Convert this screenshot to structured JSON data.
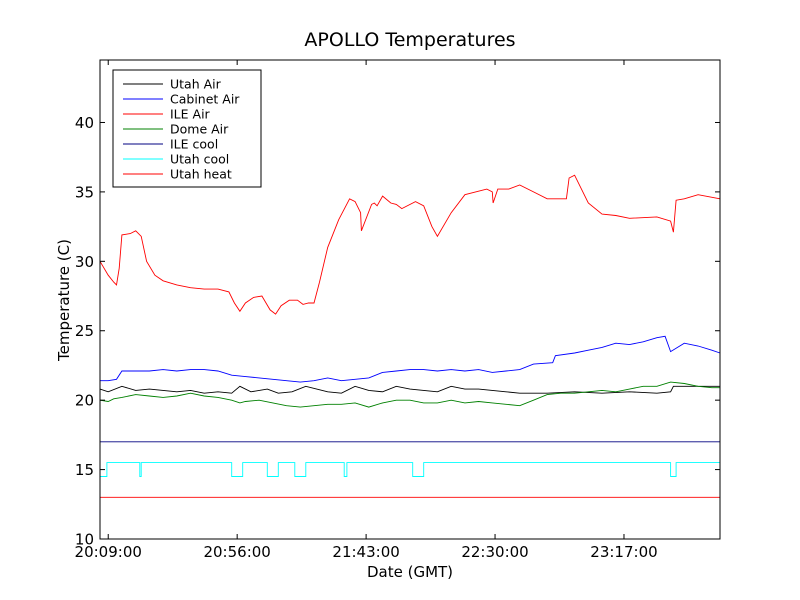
{
  "chart_data": {
    "type": "line",
    "title": "APOLLO Temperatures",
    "xlabel": "Date (GMT)",
    "ylabel": "Temperature (C)",
    "x_unit": "minutes since 20:09:00",
    "xlim": [
      -3,
      223
    ],
    "ylim": [
      10,
      44.5
    ],
    "yticks": [
      10,
      15,
      20,
      25,
      30,
      35,
      40
    ],
    "xticks": [
      {
        "value": 0,
        "label": "20:09:00"
      },
      {
        "value": 47,
        "label": "20:56:00"
      },
      {
        "value": 94,
        "label": "21:43:00"
      },
      {
        "value": 141,
        "label": "22:30:00"
      },
      {
        "value": 188,
        "label": "23:17:00"
      }
    ],
    "legend_position": "top-left",
    "series": [
      {
        "name": "Utah Air",
        "color": "#000000",
        "x": [
          -3,
          0,
          5,
          10,
          15,
          20,
          25,
          30,
          35,
          40,
          45,
          48,
          52,
          58,
          62,
          67,
          72,
          80,
          85,
          90,
          95,
          100,
          105,
          110,
          115,
          120,
          125,
          130,
          135,
          140,
          145,
          150,
          160,
          170,
          180,
          190,
          200,
          205,
          206,
          215,
          223
        ],
        "y": [
          20.8,
          20.6,
          21.0,
          20.7,
          20.8,
          20.7,
          20.6,
          20.7,
          20.5,
          20.6,
          20.5,
          21.0,
          20.6,
          20.8,
          20.5,
          20.6,
          21.0,
          20.6,
          20.5,
          21.0,
          20.7,
          20.6,
          21.0,
          20.8,
          20.7,
          20.6,
          21.0,
          20.8,
          20.8,
          20.7,
          20.6,
          20.5,
          20.5,
          20.6,
          20.5,
          20.6,
          20.5,
          20.6,
          21.0,
          21.0,
          21.0
        ]
      },
      {
        "name": "Cabinet Air",
        "color": "#0000ff",
        "x": [
          -3,
          0,
          3,
          5,
          10,
          15,
          20,
          25,
          30,
          35,
          40,
          45,
          50,
          55,
          60,
          65,
          70,
          75,
          80,
          85,
          90,
          95,
          100,
          105,
          110,
          115,
          120,
          125,
          130,
          135,
          140,
          145,
          150,
          155,
          162,
          163,
          170,
          175,
          180,
          185,
          190,
          195,
          200,
          203,
          205,
          210,
          215,
          220,
          223
        ],
        "y": [
          21.4,
          21.4,
          21.5,
          22.1,
          22.1,
          22.1,
          22.2,
          22.1,
          22.2,
          22.2,
          22.1,
          21.8,
          21.7,
          21.6,
          21.5,
          21.4,
          21.3,
          21.4,
          21.6,
          21.4,
          21.5,
          21.6,
          22.0,
          22.1,
          22.2,
          22.2,
          22.1,
          22.2,
          22.1,
          22.2,
          22.0,
          22.1,
          22.2,
          22.6,
          22.7,
          23.2,
          23.4,
          23.6,
          23.8,
          24.1,
          24.0,
          24.2,
          24.5,
          24.6,
          23.5,
          24.1,
          23.9,
          23.6,
          23.4
        ]
      },
      {
        "name": "ILE Air",
        "color": "#ff0000",
        "x": [
          -3,
          0,
          2,
          3,
          4,
          5,
          8,
          10,
          12,
          14,
          17,
          20,
          25,
          30,
          35,
          40,
          44,
          46,
          48,
          50,
          53,
          56,
          59,
          61,
          63,
          66,
          69,
          71,
          73,
          75,
          77,
          80,
          84,
          88,
          90,
          92,
          92.3,
          96,
          97,
          98,
          100,
          103,
          105,
          107,
          112,
          115,
          118,
          120,
          125,
          130,
          138,
          140,
          140.3,
          142,
          146,
          150,
          155,
          160,
          167,
          168,
          170,
          175,
          180,
          185,
          190,
          200,
          205,
          206,
          207,
          210,
          215,
          223
        ],
        "y": [
          30.0,
          29.0,
          28.5,
          28.3,
          29.5,
          31.9,
          32.0,
          32.2,
          31.8,
          30.0,
          29.0,
          28.6,
          28.3,
          28.1,
          28.0,
          28.0,
          27.8,
          27.0,
          26.4,
          27.0,
          27.4,
          27.5,
          26.5,
          26.2,
          26.8,
          27.2,
          27.2,
          26.9,
          27.0,
          27.0,
          28.5,
          31.0,
          33.0,
          34.5,
          34.3,
          33.5,
          32.2,
          34.1,
          34.2,
          34.0,
          34.7,
          34.2,
          34.1,
          33.8,
          34.3,
          34.0,
          32.5,
          31.8,
          33.5,
          34.8,
          35.2,
          35.0,
          34.2,
          35.2,
          35.2,
          35.5,
          35.0,
          34.5,
          34.5,
          36.0,
          36.2,
          34.2,
          33.4,
          33.3,
          33.1,
          33.2,
          32.9,
          32.1,
          34.4,
          34.5,
          34.8,
          34.5
        ]
      },
      {
        "name": "Dome Air",
        "color": "#008000",
        "x": [
          -3,
          0,
          2,
          5,
          10,
          15,
          20,
          25,
          30,
          35,
          40,
          45,
          48,
          50,
          55,
          60,
          65,
          70,
          75,
          80,
          85,
          90,
          95,
          100,
          105,
          110,
          115,
          120,
          125,
          130,
          135,
          140,
          145,
          150,
          155,
          160,
          165,
          170,
          175,
          180,
          185,
          190,
          195,
          200,
          205,
          210,
          215,
          220,
          223
        ],
        "y": [
          20.0,
          19.9,
          20.1,
          20.2,
          20.4,
          20.3,
          20.2,
          20.3,
          20.5,
          20.3,
          20.2,
          20.0,
          19.8,
          19.9,
          20.0,
          19.8,
          19.6,
          19.5,
          19.6,
          19.7,
          19.7,
          19.8,
          19.5,
          19.8,
          20.0,
          20.0,
          19.8,
          19.8,
          20.0,
          19.8,
          19.9,
          19.8,
          19.7,
          19.6,
          20.0,
          20.4,
          20.5,
          20.5,
          20.6,
          20.7,
          20.6,
          20.8,
          21.0,
          21.0,
          21.3,
          21.2,
          21.0,
          20.9,
          20.9
        ]
      },
      {
        "name": "ILE cool",
        "color": "#000080",
        "x": [
          -3,
          223
        ],
        "y": [
          17.0,
          17.0
        ]
      },
      {
        "name": "Utah cool",
        "color": "#00ffff",
        "x": [
          -3,
          -0.5,
          -0.5,
          11.5,
          11.5,
          12,
          12,
          45,
          45,
          49,
          49,
          58,
          58,
          62,
          62,
          68,
          68,
          72,
          72,
          86,
          86,
          87,
          87,
          111,
          111,
          115,
          115,
          205,
          205,
          207,
          207,
          223
        ],
        "y": [
          14.5,
          14.5,
          15.5,
          15.5,
          14.5,
          14.5,
          15.5,
          15.5,
          14.5,
          14.5,
          15.5,
          15.5,
          14.5,
          14.5,
          15.5,
          15.5,
          14.5,
          14.5,
          15.5,
          15.5,
          14.5,
          14.5,
          15.5,
          15.5,
          14.5,
          14.5,
          15.5,
          15.5,
          14.5,
          14.5,
          15.5,
          15.5
        ]
      },
      {
        "name": "Utah heat",
        "color": "#ff0000",
        "x": [
          -3,
          223
        ],
        "y": [
          13.0,
          13.0
        ]
      }
    ]
  }
}
